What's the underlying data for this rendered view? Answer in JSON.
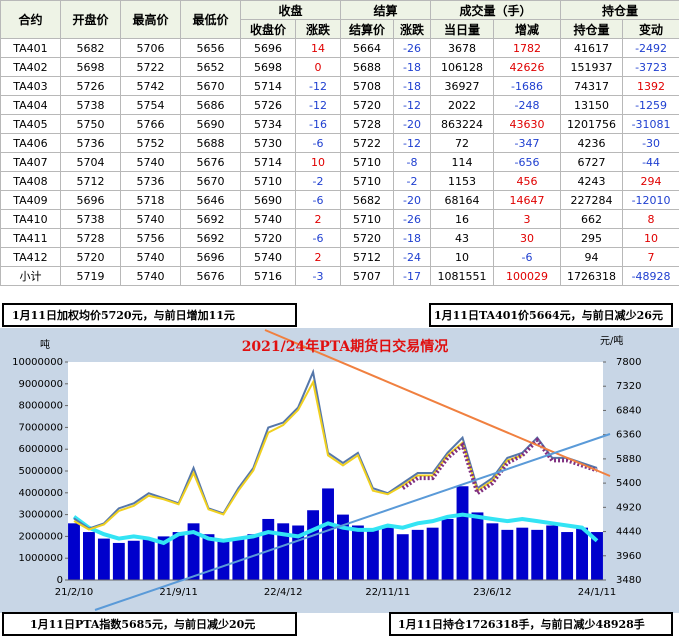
{
  "table": {
    "group_headers": [
      "收盘",
      "结算",
      "成交量（手）",
      "持仓量"
    ],
    "columns": [
      "合约",
      "开盘价",
      "最高价",
      "最低价",
      "收盘价",
      "涨跌",
      "结算价",
      "涨跌",
      "当日量",
      "增减",
      "持仓量",
      "变动"
    ],
    "rows": [
      [
        "TA401",
        5682,
        5706,
        5656,
        5696,
        14,
        5664,
        -26,
        3678,
        1782,
        41617,
        -2492
      ],
      [
        "TA402",
        5698,
        5722,
        5652,
        5698,
        0,
        5688,
        -18,
        106128,
        42626,
        151937,
        -3723
      ],
      [
        "TA403",
        5726,
        5742,
        5670,
        5714,
        -12,
        5708,
        -18,
        36927,
        -1686,
        74317,
        1392
      ],
      [
        "TA404",
        5738,
        5754,
        5686,
        5726,
        -12,
        5720,
        -12,
        2022,
        -248,
        13150,
        -1259
      ],
      [
        "TA405",
        5750,
        5766,
        5690,
        5734,
        -16,
        5728,
        -20,
        863224,
        43630,
        1201756,
        -31081
      ],
      [
        "TA406",
        5736,
        5752,
        5688,
        5730,
        -6,
        5722,
        -12,
        72,
        -347,
        4236,
        -30
      ],
      [
        "TA407",
        5704,
        5740,
        5676,
        5714,
        10,
        5710,
        -8,
        114,
        -656,
        6727,
        -44
      ],
      [
        "TA408",
        5712,
        5736,
        5670,
        5710,
        -2,
        5710,
        -2,
        1153,
        456,
        4243,
        294
      ],
      [
        "TA409",
        5696,
        5718,
        5646,
        5690,
        -6,
        5682,
        -20,
        68164,
        14647,
        227284,
        -12010
      ],
      [
        "TA410",
        5738,
        5740,
        5692,
        5740,
        2,
        5710,
        -26,
        16,
        3,
        662,
        8
      ],
      [
        "TA411",
        5728,
        5756,
        5692,
        5720,
        -6,
        5720,
        -18,
        43,
        30,
        295,
        10
      ],
      [
        "TA412",
        5720,
        5740,
        5696,
        5740,
        2,
        5712,
        -24,
        10,
        -6,
        94,
        7
      ],
      [
        "小计",
        5719,
        5740,
        5676,
        5716,
        -3,
        5707,
        -17,
        1081551,
        100029,
        1726318,
        -48928
      ]
    ]
  },
  "annotations": [
    "1月11日加权均价5720元，与前日增加11元",
    "1月11日TA401价5664元，与前日减少26元",
    "1月11日PTA指数5685元，与前日减少20元",
    "1月11日持仓1726318手，与前日减少48928手"
  ],
  "chart_data": {
    "type": "combo",
    "title": "2021/24年PTA期货日交易情况",
    "y_label": "吨",
    "y2_label": "元/吨",
    "categories": [
      "21/2/10",
      null,
      null,
      null,
      null,
      null,
      null,
      "21/9/11",
      null,
      null,
      null,
      null,
      null,
      null,
      "22/4/12",
      null,
      null,
      null,
      null,
      null,
      null,
      "22/11/11",
      null,
      null,
      null,
      null,
      null,
      null,
      "23/6/12",
      null,
      null,
      null,
      null,
      null,
      null,
      "24/1/11"
    ],
    "ylim": [
      0,
      10000000
    ],
    "yticks": [
      0,
      1000000,
      2000000,
      3000000,
      4000000,
      5000000,
      6000000,
      7000000,
      8000000,
      9000000,
      10000000
    ],
    "y2lim": [
      3480,
      7800
    ],
    "y2ticks": [
      3480,
      3960,
      4440,
      4920,
      5400,
      5880,
      6360,
      6840,
      7320,
      7800
    ],
    "series": [
      {
        "kind": "bar",
        "color": "#0000cc",
        "axis": "y",
        "values": [
          2600000,
          2200000,
          1900000,
          1700000,
          1800000,
          1900000,
          2000000,
          2200000,
          2600000,
          2100000,
          1800000,
          1900000,
          2100000,
          2800000,
          2600000,
          2500000,
          3200000,
          4200000,
          3000000,
          2500000,
          2300000,
          2400000,
          2100000,
          2300000,
          2400000,
          2800000,
          4300000,
          3100000,
          2600000,
          2300000,
          2400000,
          2300000,
          2500000,
          2200000,
          2400000,
          2200000
        ]
      },
      {
        "kind": "line",
        "color": "#33e4f4",
        "axis": "y",
        "values": [
          2900000,
          2400000,
          2100000,
          1900000,
          2000000,
          1900000,
          1700000,
          2100000,
          2200000,
          1900000,
          1800000,
          1900000,
          2000000,
          2200000,
          2100000,
          2000000,
          2300000,
          2600000,
          2400000,
          2300000,
          2300000,
          2500000,
          2400000,
          2600000,
          2700000,
          2900000,
          3000000,
          2900000,
          2800000,
          2700000,
          2800000,
          2700000,
          2600000,
          2500000,
          2400000,
          1800000
        ]
      },
      {
        "kind": "line",
        "color": "#5577aa",
        "axis": "y2",
        "values": [
          4700,
          4500,
          4600,
          4900,
          5000,
          5200,
          5100,
          5000,
          5700,
          4900,
          4800,
          5300,
          5700,
          6500,
          6600,
          6900,
          7600,
          6000,
          5800,
          6000,
          5300,
          5200,
          5400,
          5600,
          5600,
          6000,
          6300,
          5300,
          5500,
          5900,
          6000,
          6300,
          5900,
          5900,
          5800,
          5700
        ]
      },
      {
        "kind": "line",
        "color": "#f0d020",
        "axis": "y2",
        "values": [
          4650,
          4480,
          4580,
          4850,
          4950,
          5150,
          5080,
          4980,
          5600,
          4880,
          4780,
          5250,
          5650,
          6400,
          6550,
          6850,
          7400,
          5950,
          5750,
          5950,
          5250,
          5180,
          5350,
          5550,
          5550,
          5950,
          6200,
          5250,
          5450,
          5850,
          5950,
          null,
          null,
          null,
          null,
          null
        ]
      },
      {
        "kind": "dots",
        "color": "#803080",
        "axis": "y2",
        "values": [
          null,
          null,
          null,
          null,
          null,
          null,
          null,
          null,
          null,
          null,
          null,
          null,
          null,
          null,
          null,
          null,
          null,
          null,
          null,
          null,
          null,
          null,
          5300,
          5500,
          5500,
          5900,
          6150,
          5200,
          5400,
          5800,
          5950,
          6250,
          5850,
          5850,
          5750,
          5650
        ]
      }
    ]
  }
}
